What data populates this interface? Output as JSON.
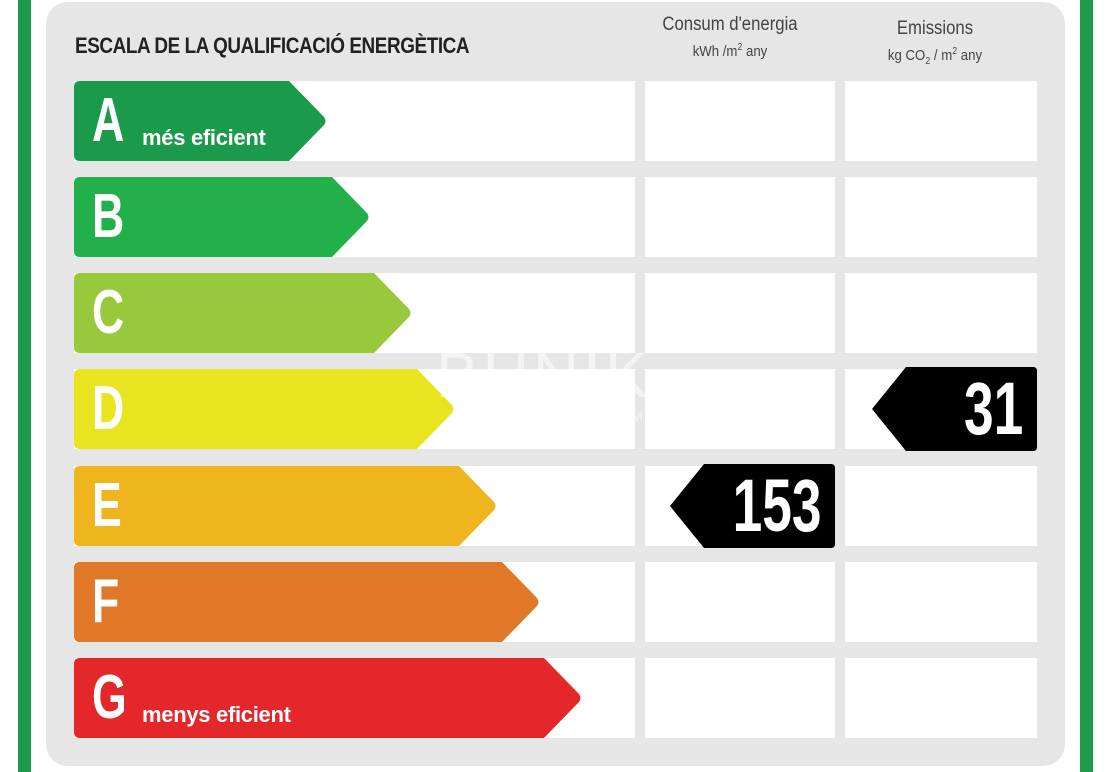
{
  "title": "ESCALA DE LA QUALIFICACIÓ ENERGÈTICA",
  "headers": {
    "energy": {
      "label": "Consum d'energia",
      "unit_a": "kWh /m",
      "unit_sup": "2",
      "unit_b": " any"
    },
    "emissions": {
      "label": "Emissions",
      "unit_a": "kg CO",
      "unit_sub": "2",
      "unit_mid": " / m",
      "unit_sup": "2",
      "unit_b": " any"
    }
  },
  "ratings": [
    {
      "letter": "A",
      "desc": "més eficient",
      "color": "#1a9a4a"
    },
    {
      "letter": "B",
      "desc": "",
      "color": "#22b04a"
    },
    {
      "letter": "C",
      "desc": "",
      "color": "#98c93c"
    },
    {
      "letter": "D",
      "desc": "",
      "color": "#e8e520"
    },
    {
      "letter": "E",
      "desc": "",
      "color": "#efb51f"
    },
    {
      "letter": "F",
      "desc": "",
      "color": "#e07828"
    },
    {
      "letter": "G",
      "desc": "menys eficient",
      "color": "#e3272b"
    }
  ],
  "energy_consumption": {
    "value": "153",
    "rating": "E"
  },
  "emissions": {
    "value": "31",
    "rating": "D"
  },
  "watermark": {
    "brand": "BUNIK",
    "sub": "HOME"
  },
  "colors": {
    "frame": "#1e9a4a",
    "panel": "#e6e6e6",
    "badge": "#000000"
  }
}
